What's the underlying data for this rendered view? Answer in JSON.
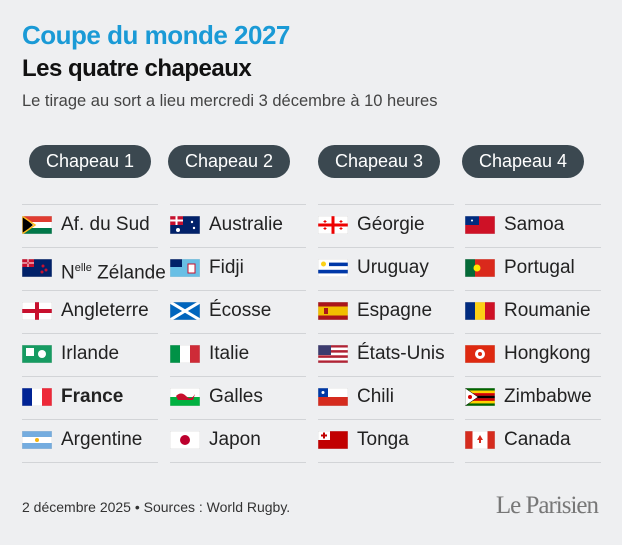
{
  "header": {
    "title": "Coupe du monde 2027",
    "subtitle": "Les quatre chapeaux",
    "description": "Le tirage au sort a lieu mercredi 3 décembre à 10 heures"
  },
  "pots": [
    {
      "label": "Chapeau 1",
      "teams": [
        {
          "name": "Af. du Sud"
        },
        {
          "prefix": "N",
          "superscript": "elle",
          "name": "Zélande"
        },
        {
          "name": "Angleterre"
        },
        {
          "name": "Irlande"
        },
        {
          "name": "France",
          "highlight": true
        },
        {
          "name": "Argentine"
        }
      ]
    },
    {
      "label": "Chapeau 2",
      "teams": [
        {
          "name": "Australie"
        },
        {
          "name": "Fidji"
        },
        {
          "name": "Écosse"
        },
        {
          "name": "Italie"
        },
        {
          "name": "Galles"
        },
        {
          "name": "Japon"
        }
      ]
    },
    {
      "label": "Chapeau 3",
      "teams": [
        {
          "name": "Géorgie"
        },
        {
          "name": "Uruguay"
        },
        {
          "name": "Espagne"
        },
        {
          "name": "États-Unis"
        },
        {
          "name": "Chili"
        },
        {
          "name": "Tonga"
        }
      ]
    },
    {
      "label": "Chapeau 4",
      "teams": [
        {
          "name": "Samoa"
        },
        {
          "name": "Portugal"
        },
        {
          "name": "Roumanie"
        },
        {
          "name": "Hongkong"
        },
        {
          "name": "Zimbabwe"
        },
        {
          "name": "Canada"
        }
      ]
    }
  ],
  "footer": {
    "source": "2 décembre 2025 • Sources : World Rugby.",
    "logo": "Le Parisien"
  }
}
